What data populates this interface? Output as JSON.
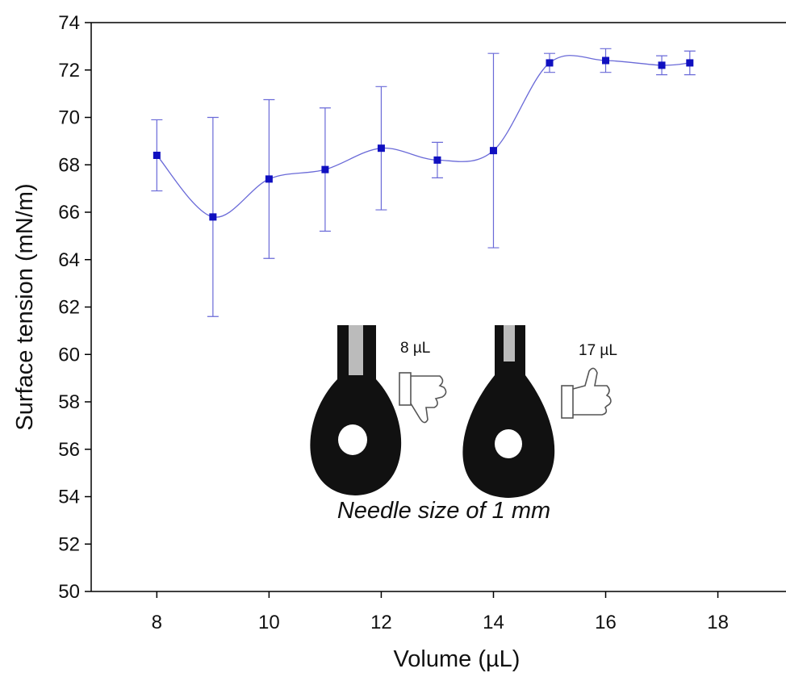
{
  "chart_data": {
    "type": "line",
    "xlabel": "Volume (µL)",
    "ylabel": "Surface tension (mN/m)",
    "x": [
      8,
      9,
      10,
      11,
      12,
      13,
      14,
      15,
      16,
      17,
      17.5
    ],
    "series": [
      {
        "color": "#1010c0",
        "values": [
          68.4,
          65.8,
          67.4,
          67.8,
          68.7,
          68.2,
          68.6,
          72.3,
          72.4,
          72.2,
          72.3
        ],
        "errors": [
          1.5,
          4.2,
          3.35,
          2.6,
          2.6,
          0.75,
          4.1,
          0.4,
          0.5,
          0.4,
          0.5
        ]
      }
    ],
    "xlim": [
      6.83,
      19.2
    ],
    "ylim": [
      50,
      74
    ],
    "xticks": [
      8,
      10,
      12,
      14,
      16,
      18
    ],
    "yticks": [
      50,
      52,
      54,
      56,
      58,
      60,
      62,
      64,
      66,
      68,
      70,
      72,
      74
    ],
    "annotations": [
      "8 µL",
      "17 µL",
      "Needle size of 1 mm"
    ]
  }
}
